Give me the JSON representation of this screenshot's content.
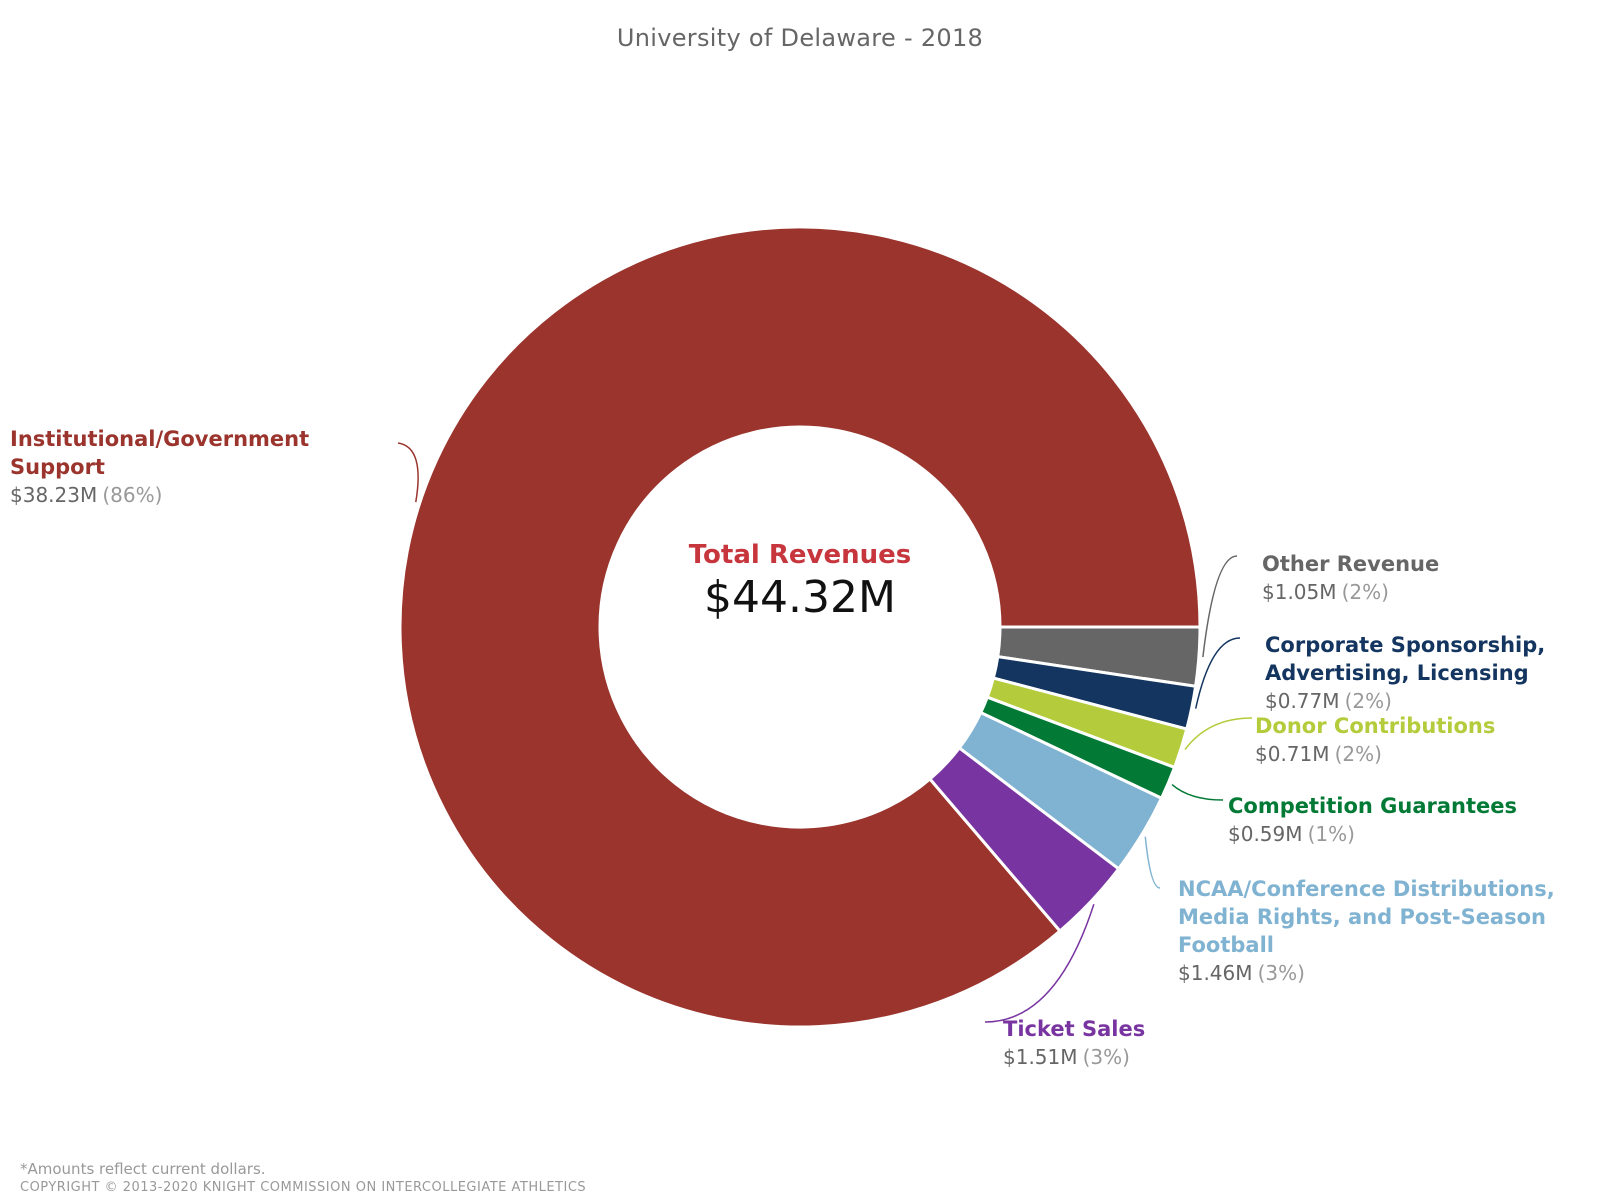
{
  "chart_data": {
    "type": "pie",
    "title": "University of Delaware - 2018",
    "donut": true,
    "center_title": "Total Revenues",
    "center_value": "$44.32M",
    "total": 44.32,
    "unit": "$M",
    "slices": [
      {
        "name": "Institutional/Government Support",
        "value": 38.23,
        "amount": "$38.23M",
        "percent": "(86%)",
        "color": "#9a342d"
      },
      {
        "name": "Other Revenue",
        "value": 1.05,
        "amount": "$1.05M",
        "percent": "(2%)",
        "color": "#666666"
      },
      {
        "name": "Corporate Sponsorship, Advertising, Licensing",
        "value": 0.77,
        "amount": "$0.77M",
        "percent": "(2%)",
        "color": "#13355f"
      },
      {
        "name": "Donor Contributions",
        "value": 0.71,
        "amount": "$0.71M",
        "percent": "(2%)",
        "color": "#b4cc3c"
      },
      {
        "name": "Competition Guarantees",
        "value": 0.59,
        "amount": "$0.59M",
        "percent": "(1%)",
        "color": "#027a36"
      },
      {
        "name": "NCAA/Conference Distributions, Media Rights, and Post-Season Football",
        "value": 1.46,
        "amount": "$1.46M",
        "percent": "(3%)",
        "color": "#80b3d1"
      },
      {
        "name": "Ticket Sales",
        "value": 1.51,
        "amount": "$1.51M",
        "percent": "(3%)",
        "color": "#7834a0"
      }
    ]
  },
  "footnote": "*Amounts reflect current dollars.",
  "copyright": "COPYRIGHT © 2013-2020 KNIGHT COMMISSION ON INTERCOLLEGIATE ATHLETICS"
}
